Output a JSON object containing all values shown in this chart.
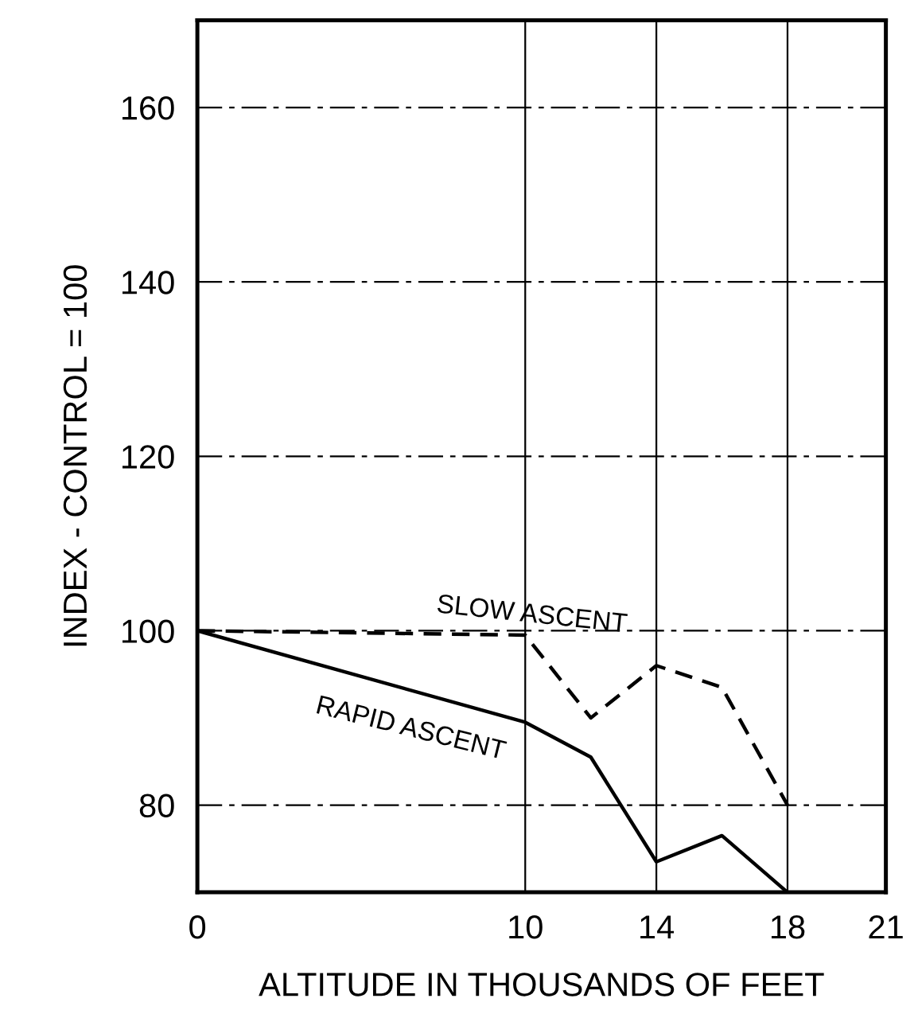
{
  "chart_data": {
    "type": "line",
    "xlabel": "ALTITUDE IN THOUSANDS OF FEET",
    "ylabel": "INDEX - CONTROL = 100",
    "x": [
      0,
      10,
      12,
      14,
      16,
      18
    ],
    "series": [
      {
        "name": "SLOW ASCENT",
        "color": "#000000",
        "line_style": "dashed",
        "values": [
          100,
          99.5,
          90,
          96,
          93.5,
          80
        ]
      },
      {
        "name": "RAPID ASCENT",
        "color": "#000000",
        "line_style": "solid",
        "values": [
          100,
          89.5,
          85.5,
          73.5,
          76.5,
          70
        ]
      }
    ],
    "xlim": [
      0,
      21
    ],
    "xticks": [
      0,
      10,
      14,
      18,
      21
    ],
    "ylim": [
      70,
      170
    ],
    "yticks": [
      80,
      100,
      120,
      140,
      160
    ],
    "grid": true,
    "marker": "none"
  }
}
